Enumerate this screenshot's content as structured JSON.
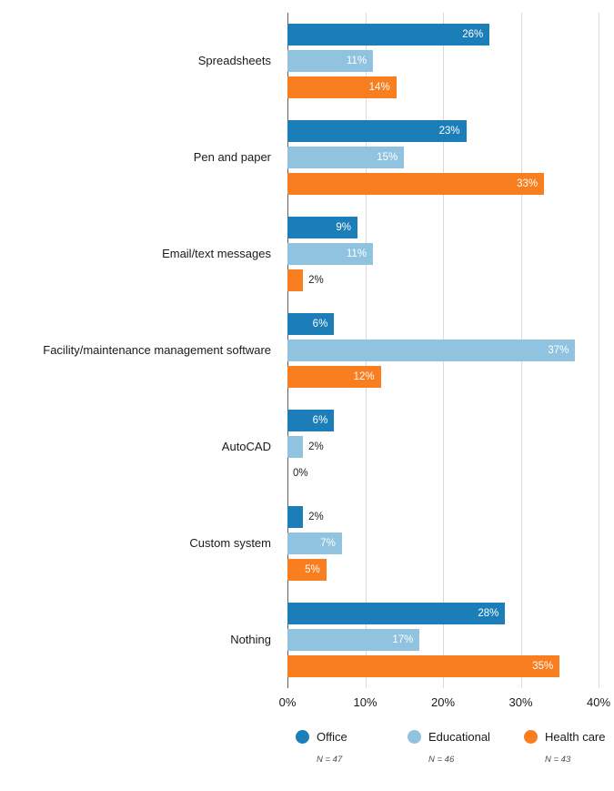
{
  "chart_data": {
    "type": "bar",
    "orientation": "horizontal",
    "title": "",
    "categories": [
      "Spreadsheets",
      "Pen and paper",
      "Email/text messages",
      "Facility/maintenance management software",
      "AutoCAD",
      "Custom system",
      "Nothing"
    ],
    "series": [
      {
        "name": "Office",
        "color": "#1b7eb8",
        "n_label": "N = 47",
        "values": [
          26,
          23,
          9,
          6,
          6,
          2,
          28
        ]
      },
      {
        "name": "Educational",
        "color": "#8fc3df",
        "n_label": "N = 46",
        "values": [
          11,
          15,
          11,
          37,
          2,
          7,
          17
        ]
      },
      {
        "name": "Health care",
        "color": "#f97e20",
        "n_label": "N = 43",
        "values": [
          14,
          33,
          2,
          12,
          0,
          5,
          35
        ]
      }
    ],
    "xlim": [
      0,
      40
    ],
    "x_ticks": [
      "0%",
      "10%",
      "20%",
      "30%",
      "40%"
    ],
    "value_suffix": "%",
    "grid": true,
    "legend_position": "bottom",
    "value_label_inside_threshold": 5
  }
}
